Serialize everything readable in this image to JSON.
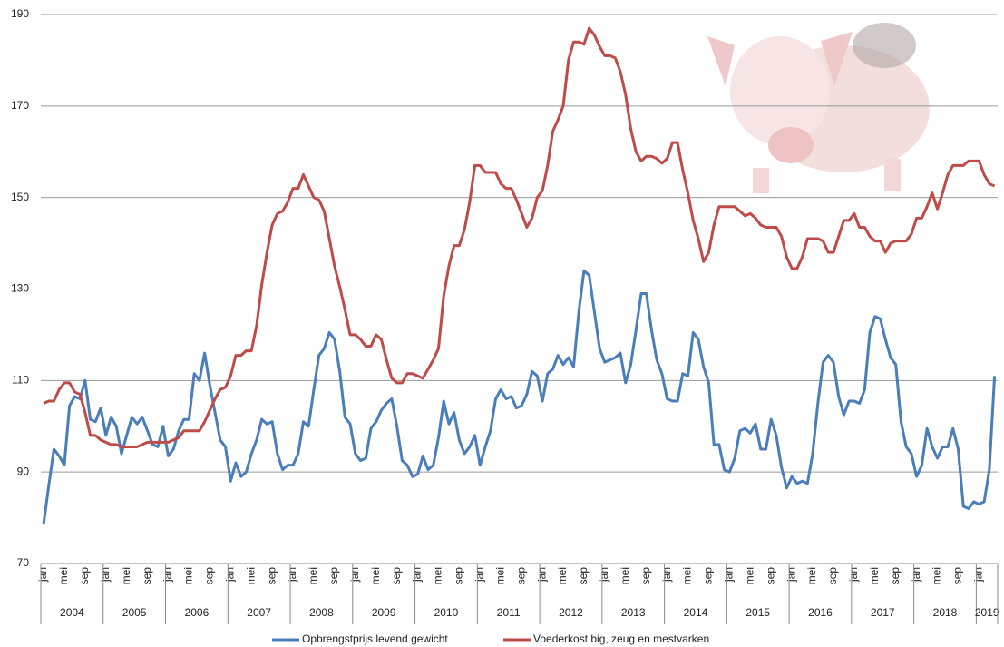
{
  "chart_data": {
    "type": "line",
    "categories": [
      "jan",
      null,
      null,
      null,
      "mei",
      null,
      null,
      null,
      "sep",
      null,
      null,
      null,
      "jan",
      null,
      null,
      null,
      "mei",
      null,
      null,
      null,
      "sep",
      null,
      null,
      null,
      "jan",
      null,
      null,
      null,
      "mei",
      null,
      null,
      null,
      "sep",
      null,
      null,
      null,
      "jan",
      null,
      null,
      null,
      "mei",
      null,
      null,
      null,
      "sep",
      null,
      null,
      null,
      "jan",
      null,
      null,
      null,
      "mei",
      null,
      null,
      null,
      "sep",
      null,
      null,
      null,
      "jan",
      null,
      null,
      null,
      "mei",
      null,
      null,
      null,
      "sep",
      null,
      null,
      null,
      "jan",
      null,
      null,
      null,
      "mei",
      null,
      null,
      null,
      "sep",
      null,
      null,
      null,
      "jan",
      null,
      null,
      null,
      "mei",
      null,
      null,
      null,
      "sep",
      null,
      null,
      null,
      "jan",
      null,
      null,
      null,
      "mei",
      null,
      null,
      null,
      "sep",
      null,
      null,
      null,
      "jan",
      null,
      null,
      null,
      "mei",
      null,
      null,
      null,
      "sep",
      null,
      null,
      null,
      "jan",
      null,
      null,
      null,
      "mei",
      null,
      null,
      null,
      "sep",
      null,
      null,
      null,
      "jan",
      null,
      null,
      null,
      "mei",
      null,
      null,
      null,
      "sep",
      null,
      null,
      null,
      "jan",
      null,
      null,
      null,
      "mei",
      null,
      null,
      null,
      "sep",
      null,
      null,
      null,
      "jan",
      null,
      null,
      null,
      "mei",
      null,
      null,
      null,
      "sep",
      null,
      null,
      null,
      "jan",
      null,
      null,
      null,
      "mei",
      null,
      null,
      null,
      "sep",
      null,
      null,
      null,
      "jan",
      null,
      null,
      null
    ],
    "years": [
      "2004",
      "2005",
      "2006",
      "2007",
      "2008",
      "2009",
      "2010",
      "2011",
      "2012",
      "2013",
      "2014",
      "2015",
      "2016",
      "2017",
      "2018",
      "2019"
    ],
    "series": [
      {
        "name": "Opbrengstprijs levend gewicht",
        "color": "#4a7ebb",
        "values": [
          78.5,
          87,
          95,
          93.5,
          91.5,
          104.5,
          106.5,
          106,
          110,
          101.5,
          101,
          104,
          98,
          102,
          100,
          94,
          98,
          102,
          100.5,
          102,
          99,
          96,
          95.5,
          100,
          93.5,
          95,
          99,
          101.5,
          101.5,
          111.5,
          110,
          116,
          109,
          103,
          97,
          95.5,
          88,
          92,
          89,
          90,
          94,
          97,
          101.5,
          100.5,
          101,
          94,
          90.5,
          91.5,
          91.5,
          94,
          101,
          100,
          108,
          115.5,
          117,
          120.5,
          119,
          112,
          102,
          100.5,
          94,
          92.5,
          93,
          99.5,
          101,
          103.5,
          105,
          106,
          100,
          92.5,
          91.5,
          89,
          89.5,
          93.5,
          90.5,
          91.5,
          97.5,
          105.5,
          100.5,
          103,
          97,
          94,
          95.5,
          98,
          91.5,
          95.5,
          99,
          106,
          108,
          106,
          106.5,
          104,
          104.5,
          107,
          112,
          111,
          105.5,
          111.5,
          112.5,
          115.5,
          113.5,
          115,
          113,
          125,
          134,
          133,
          125,
          117,
          114,
          114.5,
          115,
          116,
          109.5,
          113.5,
          121,
          129,
          129,
          121,
          114.5,
          111.5,
          106,
          105.5,
          105.5,
          111.5,
          111,
          120.5,
          119,
          113,
          109.5,
          96,
          96,
          90.5,
          90,
          93,
          99,
          99.5,
          98.5,
          100.5,
          95,
          95,
          101.5,
          98,
          91,
          86.5,
          89,
          87.5,
          88,
          87.5,
          94,
          105,
          114,
          115.5,
          114,
          106.5,
          102.5,
          105.5,
          105.5,
          105,
          108,
          120.5,
          124,
          123.5,
          119,
          115,
          113.5,
          101,
          95.5,
          94,
          89,
          91.5,
          99.5,
          95.5,
          93,
          95.5,
          95.5,
          99.5,
          95,
          82.5,
          82,
          83.5,
          83,
          83.5,
          90.5,
          111
        ]
      },
      {
        "name": "Voederkost big, zeug en mestvarken",
        "color": "#be4b48",
        "values": [
          105,
          105.5,
          105.5,
          108,
          109.5,
          109.5,
          107.5,
          107,
          103,
          98,
          98,
          97,
          96.5,
          96,
          96,
          95.5,
          95.5,
          95.5,
          95.5,
          96,
          96.5,
          96.5,
          96.5,
          96.5,
          96.5,
          97,
          97.5,
          99,
          99,
          99,
          99,
          101,
          103.5,
          106,
          108,
          108.5,
          111,
          115.5,
          115.5,
          116.5,
          116.5,
          122,
          131,
          138,
          144,
          146.5,
          147,
          149,
          152,
          152,
          155,
          152.5,
          150,
          149.5,
          147,
          141,
          135,
          130.5,
          125.5,
          120,
          120,
          119,
          117.5,
          117.5,
          120,
          119,
          114.5,
          110.5,
          109.5,
          109.5,
          111.5,
          111.5,
          111,
          110.5,
          112.5,
          114.5,
          117,
          128.5,
          135,
          139.5,
          139.5,
          143,
          149,
          157,
          157,
          155.5,
          155.5,
          155.5,
          153,
          152,
          152,
          149.5,
          146.5,
          143.5,
          145.5,
          150,
          151.5,
          157,
          164.5,
          167,
          170,
          180,
          184,
          184,
          183.5,
          187,
          185.5,
          183,
          181,
          181,
          180.5,
          177.5,
          172.5,
          165,
          160,
          158,
          159,
          159,
          158.5,
          157.5,
          158.5,
          162,
          162,
          156,
          151,
          145,
          141,
          136,
          138,
          144,
          148,
          148,
          148,
          148,
          147,
          146,
          146.5,
          145.5,
          144,
          143.5,
          143.5,
          143.5,
          141.5,
          137,
          134.5,
          134.5,
          137,
          141,
          141,
          141,
          140.5,
          138,
          138,
          141.5,
          145,
          145,
          146.5,
          143.5,
          143.5,
          141.5,
          140.5,
          140.5,
          138,
          140,
          140.5,
          140.5,
          140.5,
          142,
          145.5,
          145.5,
          148,
          151,
          147.5,
          151,
          155,
          157,
          157,
          157,
          158,
          158,
          158,
          155,
          153,
          152.5
        ]
      }
    ],
    "ylim": [
      70,
      190
    ],
    "yticks": [
      70,
      90,
      110,
      130,
      150,
      170,
      190
    ],
    "grid": true
  }
}
